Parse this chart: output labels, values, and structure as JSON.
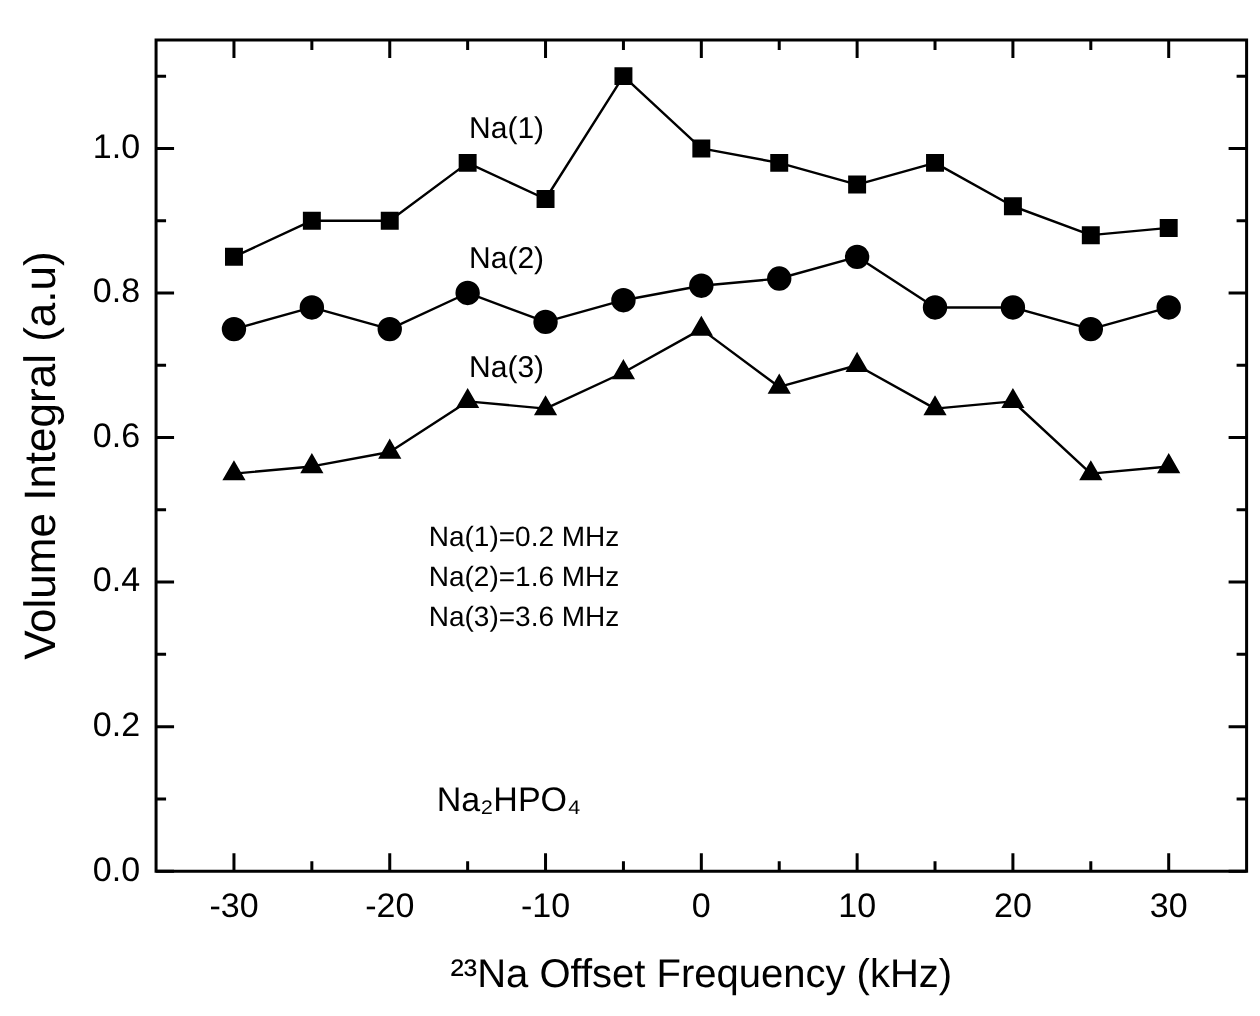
{
  "chart_data": {
    "type": "line",
    "xlabel": "²³Na Offset Frequency (kHz)",
    "ylabel": "Volume Integral (a.u)",
    "x": [
      -30,
      -25,
      -20,
      -15,
      -10,
      -5,
      0,
      5,
      10,
      15,
      20,
      25,
      30
    ],
    "series": [
      {
        "name": "Na(1)",
        "color": "#000000",
        "marker": "square",
        "values": [
          0.85,
          0.9,
          0.9,
          0.98,
          0.93,
          1.1,
          1.0,
          0.98,
          0.95,
          0.98,
          0.92,
          0.88,
          0.89
        ]
      },
      {
        "name": "Na(2)",
        "color": "#000000",
        "marker": "circle",
        "values": [
          0.75,
          0.78,
          0.75,
          0.8,
          0.76,
          0.79,
          0.81,
          0.82,
          0.85,
          0.78,
          0.78,
          0.75,
          0.78
        ]
      },
      {
        "name": "Na(3)",
        "color": "#000000",
        "marker": "triangle",
        "values": [
          0.55,
          0.56,
          0.58,
          0.65,
          0.64,
          0.69,
          0.75,
          0.67,
          0.7,
          0.64,
          0.65,
          0.55,
          0.56
        ]
      }
    ],
    "xlim": [
      -35,
      35
    ],
    "xticks": [
      -30,
      {
        "value": -25,
        "label": null
      },
      -20,
      {
        "value": -15,
        "label": null
      },
      -10,
      {
        "value": -5,
        "label": null
      },
      0,
      {
        "value": 5,
        "label": null
      },
      10,
      {
        "value": 15,
        "label": null
      },
      20,
      {
        "value": 25,
        "label": null
      },
      30
    ],
    "ylim": [
      0,
      1.15
    ],
    "yticks": [
      {
        "value": 0,
        "label": "0.0"
      },
      {
        "value": 0.1,
        "label": null
      },
      0.2,
      {
        "value": 0.3,
        "label": null
      },
      0.4,
      {
        "value": 0.5,
        "label": null
      },
      0.6,
      {
        "value": 0.7,
        "label": null
      },
      0.8,
      {
        "value": 0.9,
        "label": null
      },
      {
        "value": 1,
        "label": "1.0"
      },
      {
        "value": 1.1,
        "label": null
      }
    ],
    "annotations": [
      "Na(1)=0.2 MHz",
      "Na(2)=1.6 MHz",
      "Na(3)=3.6 MHz",
      "Na₂HPO₄"
    ],
    "grid": false,
    "legend": false,
    "line_style": "solid"
  }
}
